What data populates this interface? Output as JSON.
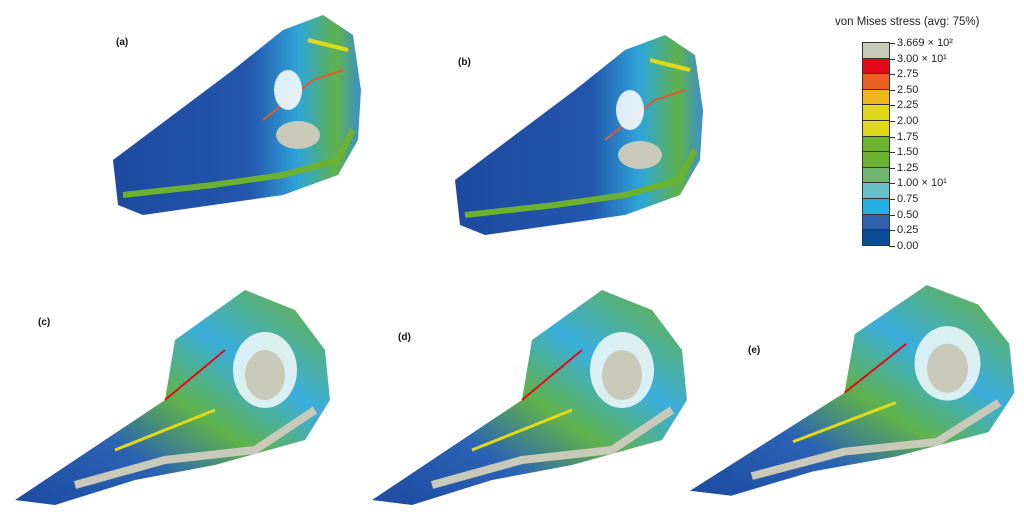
{
  "panels": [
    "(a)",
    "(b)",
    "(c)",
    "(d)",
    "(e)"
  ],
  "legend": {
    "title": "von Mises stress (avg: 75%)",
    "labels": [
      "3.669 × 10²",
      "3.00 × 10¹",
      "2.75",
      "2.50",
      "2.25",
      "2.00",
      "1.75",
      "1.50",
      "1.25",
      "1.00 × 10¹",
      "0.75",
      "0.50",
      "0.25",
      "0.00"
    ],
    "colors": [
      "#c8c9b8",
      "#e20a1b",
      "#ea6020",
      "#f1b51e",
      "#dfd81b",
      "#dfd81b",
      "#6db22e",
      "#6db22e",
      "#6fb56f",
      "#68c1c6",
      "#25b1e4",
      "#2f62ad",
      "#0b4c99"
    ]
  }
}
